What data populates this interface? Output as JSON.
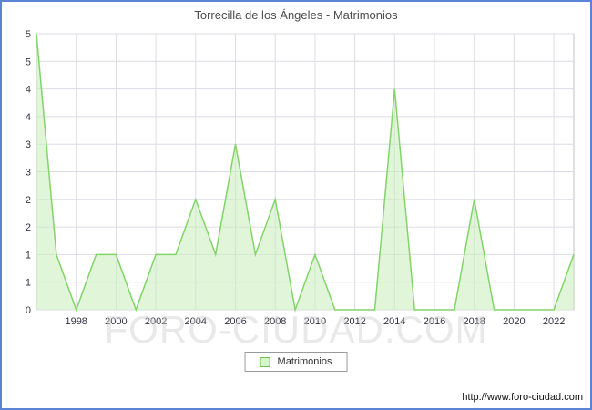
{
  "watermark": "FORO-CIUDAD.COM",
  "footer_url": "http://www.foro-ciudad.com",
  "colors": {
    "frame_border": "#5b84d6",
    "grid": "#dcdce6",
    "plot_border": "#c0c0c0",
    "area_fill": "#c9efba",
    "area_stroke": "#82d46a",
    "tick_text": "#333344",
    "title_text": "#4d4d4d"
  },
  "legend": {
    "label": "Matrimonios",
    "position": "bottom"
  },
  "chart_data": {
    "type": "area",
    "title": "Torrecilla de los Ángeles - Matrimonios",
    "xlabel": "",
    "ylabel": "",
    "x": [
      1996,
      1997,
      1998,
      1999,
      2000,
      2001,
      2002,
      2003,
      2004,
      2005,
      2006,
      2007,
      2008,
      2009,
      2010,
      2011,
      2012,
      2013,
      2014,
      2015,
      2016,
      2017,
      2018,
      2019,
      2020,
      2021,
      2022,
      2023
    ],
    "series": [
      {
        "name": "Matrimonios",
        "values": [
          5,
          1,
          0,
          1,
          1,
          0,
          1,
          1,
          2,
          1,
          3,
          1,
          2,
          0,
          1,
          0,
          0,
          0,
          4,
          0,
          0,
          0,
          2,
          0,
          0,
          0,
          0,
          1
        ]
      }
    ],
    "ylim": [
      0,
      5
    ],
    "ytick_values": [
      0,
      0.5,
      1,
      1.5,
      2,
      2.5,
      3,
      3.5,
      4,
      4.5,
      5
    ],
    "ytick_labels": [
      "0",
      "1",
      "1",
      "2",
      "2",
      "3",
      "3",
      "4",
      "4",
      "5",
      "5"
    ],
    "xtick_values": [
      1998,
      2000,
      2002,
      2004,
      2006,
      2008,
      2010,
      2012,
      2014,
      2016,
      2018,
      2020,
      2022
    ],
    "xtick_labels": [
      "1998",
      "2000",
      "2002",
      "2004",
      "2006",
      "2008",
      "2010",
      "2012",
      "2014",
      "2016",
      "2018",
      "2020",
      "2022"
    ],
    "grid": true,
    "legend_position": "bottom"
  }
}
